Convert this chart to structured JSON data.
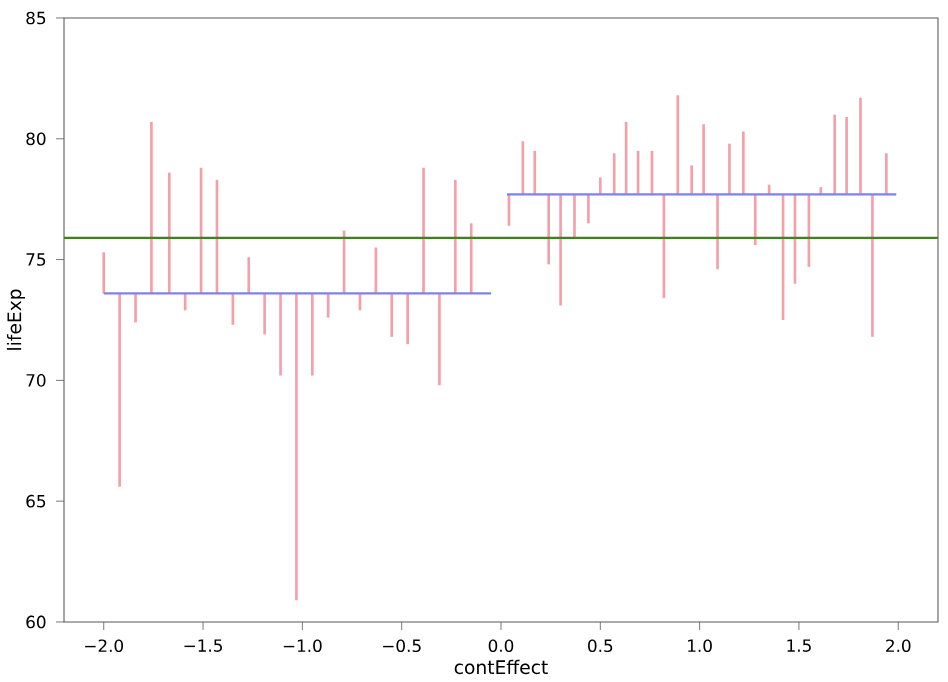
{
  "chart_data": {
    "type": "bar",
    "xlabel": "contEffect",
    "ylabel": "lifeExp",
    "xlim": [
      -2.2,
      2.2
    ],
    "ylim": [
      60,
      85
    ],
    "xticks": [
      {
        "value": -2.0,
        "label": "−2.0"
      },
      {
        "value": -1.5,
        "label": "−1.5"
      },
      {
        "value": -1.0,
        "label": "−1.0"
      },
      {
        "value": -0.5,
        "label": "−0.5"
      },
      {
        "value": 0.0,
        "label": "0.0"
      },
      {
        "value": 0.5,
        "label": "0.5"
      },
      {
        "value": 1.0,
        "label": "1.0"
      },
      {
        "value": 1.5,
        "label": "1.5"
      },
      {
        "value": 2.0,
        "label": "2.0"
      }
    ],
    "yticks": [
      60,
      65,
      70,
      75,
      80,
      85
    ],
    "series": [
      {
        "color": "#f4a0a8",
        "x": [
          -2.0,
          -1.92,
          -1.84,
          -1.76,
          -1.67,
          -1.59,
          -1.51,
          -1.43,
          -1.35,
          -1.27,
          -1.19,
          -1.11,
          -1.03,
          -0.95,
          -0.87,
          -0.79,
          -0.71,
          -0.63,
          -0.55,
          -0.47,
          -0.39,
          -0.31,
          -0.23,
          -0.15
        ],
        "base": [
          73.6,
          73.6,
          73.6,
          73.6,
          73.6,
          73.6,
          73.6,
          73.6,
          73.6,
          73.6,
          73.6,
          73.6,
          73.6,
          73.6,
          73.6,
          73.6,
          73.6,
          73.6,
          73.6,
          73.6,
          73.6,
          73.6,
          73.6,
          73.6
        ],
        "values": [
          1.7,
          -8.0,
          -1.2,
          7.1,
          5.0,
          -0.7,
          5.2,
          4.7,
          -1.3,
          1.5,
          -1.7,
          -3.4,
          -12.7,
          -3.4,
          -1.0,
          2.6,
          -0.7,
          1.9,
          -1.8,
          -2.1,
          5.2,
          -3.8,
          4.7,
          2.9
        ]
      },
      {
        "color": "#f4a0a8",
        "x": [
          0.04,
          0.11,
          0.17,
          0.24,
          0.3,
          0.37,
          0.44,
          0.5,
          0.57,
          0.63,
          0.69,
          0.76,
          0.82,
          0.89,
          0.96,
          1.02,
          1.09,
          1.15,
          1.22,
          1.28,
          1.35,
          1.42,
          1.48,
          1.55,
          1.61,
          1.68,
          1.74,
          1.81,
          1.87,
          1.94
        ],
        "base": [
          77.7,
          77.7,
          77.7,
          77.7,
          77.7,
          77.7,
          77.7,
          77.7,
          77.7,
          77.7,
          77.7,
          77.7,
          77.7,
          77.7,
          77.7,
          77.7,
          77.7,
          77.7,
          77.7,
          77.7,
          77.7,
          77.7,
          77.7,
          77.7,
          77.7,
          77.7,
          77.7,
          77.7,
          77.7,
          77.7
        ],
        "values": [
          -1.3,
          2.2,
          1.8,
          -2.9,
          -4.6,
          -1.8,
          -1.2,
          0.7,
          1.7,
          3.0,
          1.8,
          1.8,
          -4.3,
          4.1,
          1.2,
          2.9,
          -3.1,
          2.1,
          2.6,
          -2.1,
          0.4,
          -5.2,
          -3.7,
          -3.0,
          0.3,
          3.3,
          3.2,
          4.0,
          -5.9,
          1.7
        ]
      },
      {
        "type": "line",
        "color": "#8080f0",
        "x": [
          -2.0,
          -0.05
        ],
        "values": [
          73.6,
          73.6
        ]
      },
      {
        "type": "line",
        "color": "#8080f0",
        "x": [
          0.03,
          1.99
        ],
        "values": [
          77.7,
          77.7
        ]
      }
    ],
    "ref_lines": [
      {
        "axis": "y",
        "value": 75.9,
        "color": "#408020"
      }
    ]
  }
}
